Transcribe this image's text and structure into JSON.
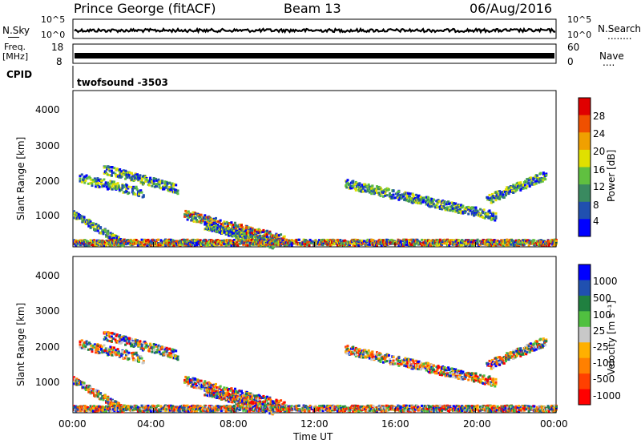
{
  "header": {
    "station": "Prince George (fitACF)",
    "beam": "Beam 13",
    "date": "06/Aug/2016"
  },
  "noise_panel": {
    "left_label": "N.Sky",
    "right_label": "N.Search",
    "left_ticks": [
      "10^5",
      "10^0"
    ],
    "right_ticks": [
      "10^5",
      "10^0"
    ],
    "right_dots": "........"
  },
  "freq_panel": {
    "left_label": "Freq.",
    "left_unit": "[MHz]",
    "right_label": "Nave",
    "left_ticks": [
      "18",
      "8"
    ],
    "right_ticks": [
      "60",
      "0"
    ],
    "right_dots": "...."
  },
  "cpid_panel": {
    "label": "CPID",
    "value": "twofsound -3503"
  },
  "colors": {
    "power": [
      "#0000ff",
      "#2050b0",
      "#3a8a60",
      "#60c040",
      "#e0e000",
      "#f0a000",
      "#f05000",
      "#e00000"
    ],
    "velocity": [
      "#ff0000",
      "#ff4000",
      "#ff8000",
      "#ffb000",
      "#c8c8c8",
      "#50c040",
      "#208040",
      "#2050b0",
      "#0000ff"
    ]
  },
  "chart_data": [
    {
      "type": "heatmap",
      "name": "power",
      "ylabel": "Slant Range [km]",
      "yticks": [
        "1000",
        "2000",
        "3000",
        "4000"
      ],
      "ylim": [
        180,
        4500
      ],
      "xlim": [
        0,
        24
      ],
      "colorbar_label": "Power [dB]",
      "colorbar_ticks": [
        "4",
        "8",
        "12",
        "16",
        "20",
        "24",
        "28"
      ],
      "colorbar_range": [
        0,
        32
      ]
    },
    {
      "type": "heatmap",
      "name": "velocity",
      "ylabel": "Slant Range [km]",
      "yticks": [
        "1000",
        "2000",
        "3000",
        "4000"
      ],
      "ylim": [
        180,
        4500
      ],
      "xlim": [
        0,
        24
      ],
      "colorbar_label": "Velocity [m s⁻¹]",
      "colorbar_ticks": [
        "1000",
        "500",
        "100",
        "25",
        "-25",
        "-100",
        "-500",
        "-1000"
      ]
    }
  ],
  "xaxis": {
    "label": "Time UT",
    "ticks": [
      "00:00",
      "04:00",
      "08:00",
      "12:00",
      "16:00",
      "20:00",
      "00:00"
    ]
  }
}
